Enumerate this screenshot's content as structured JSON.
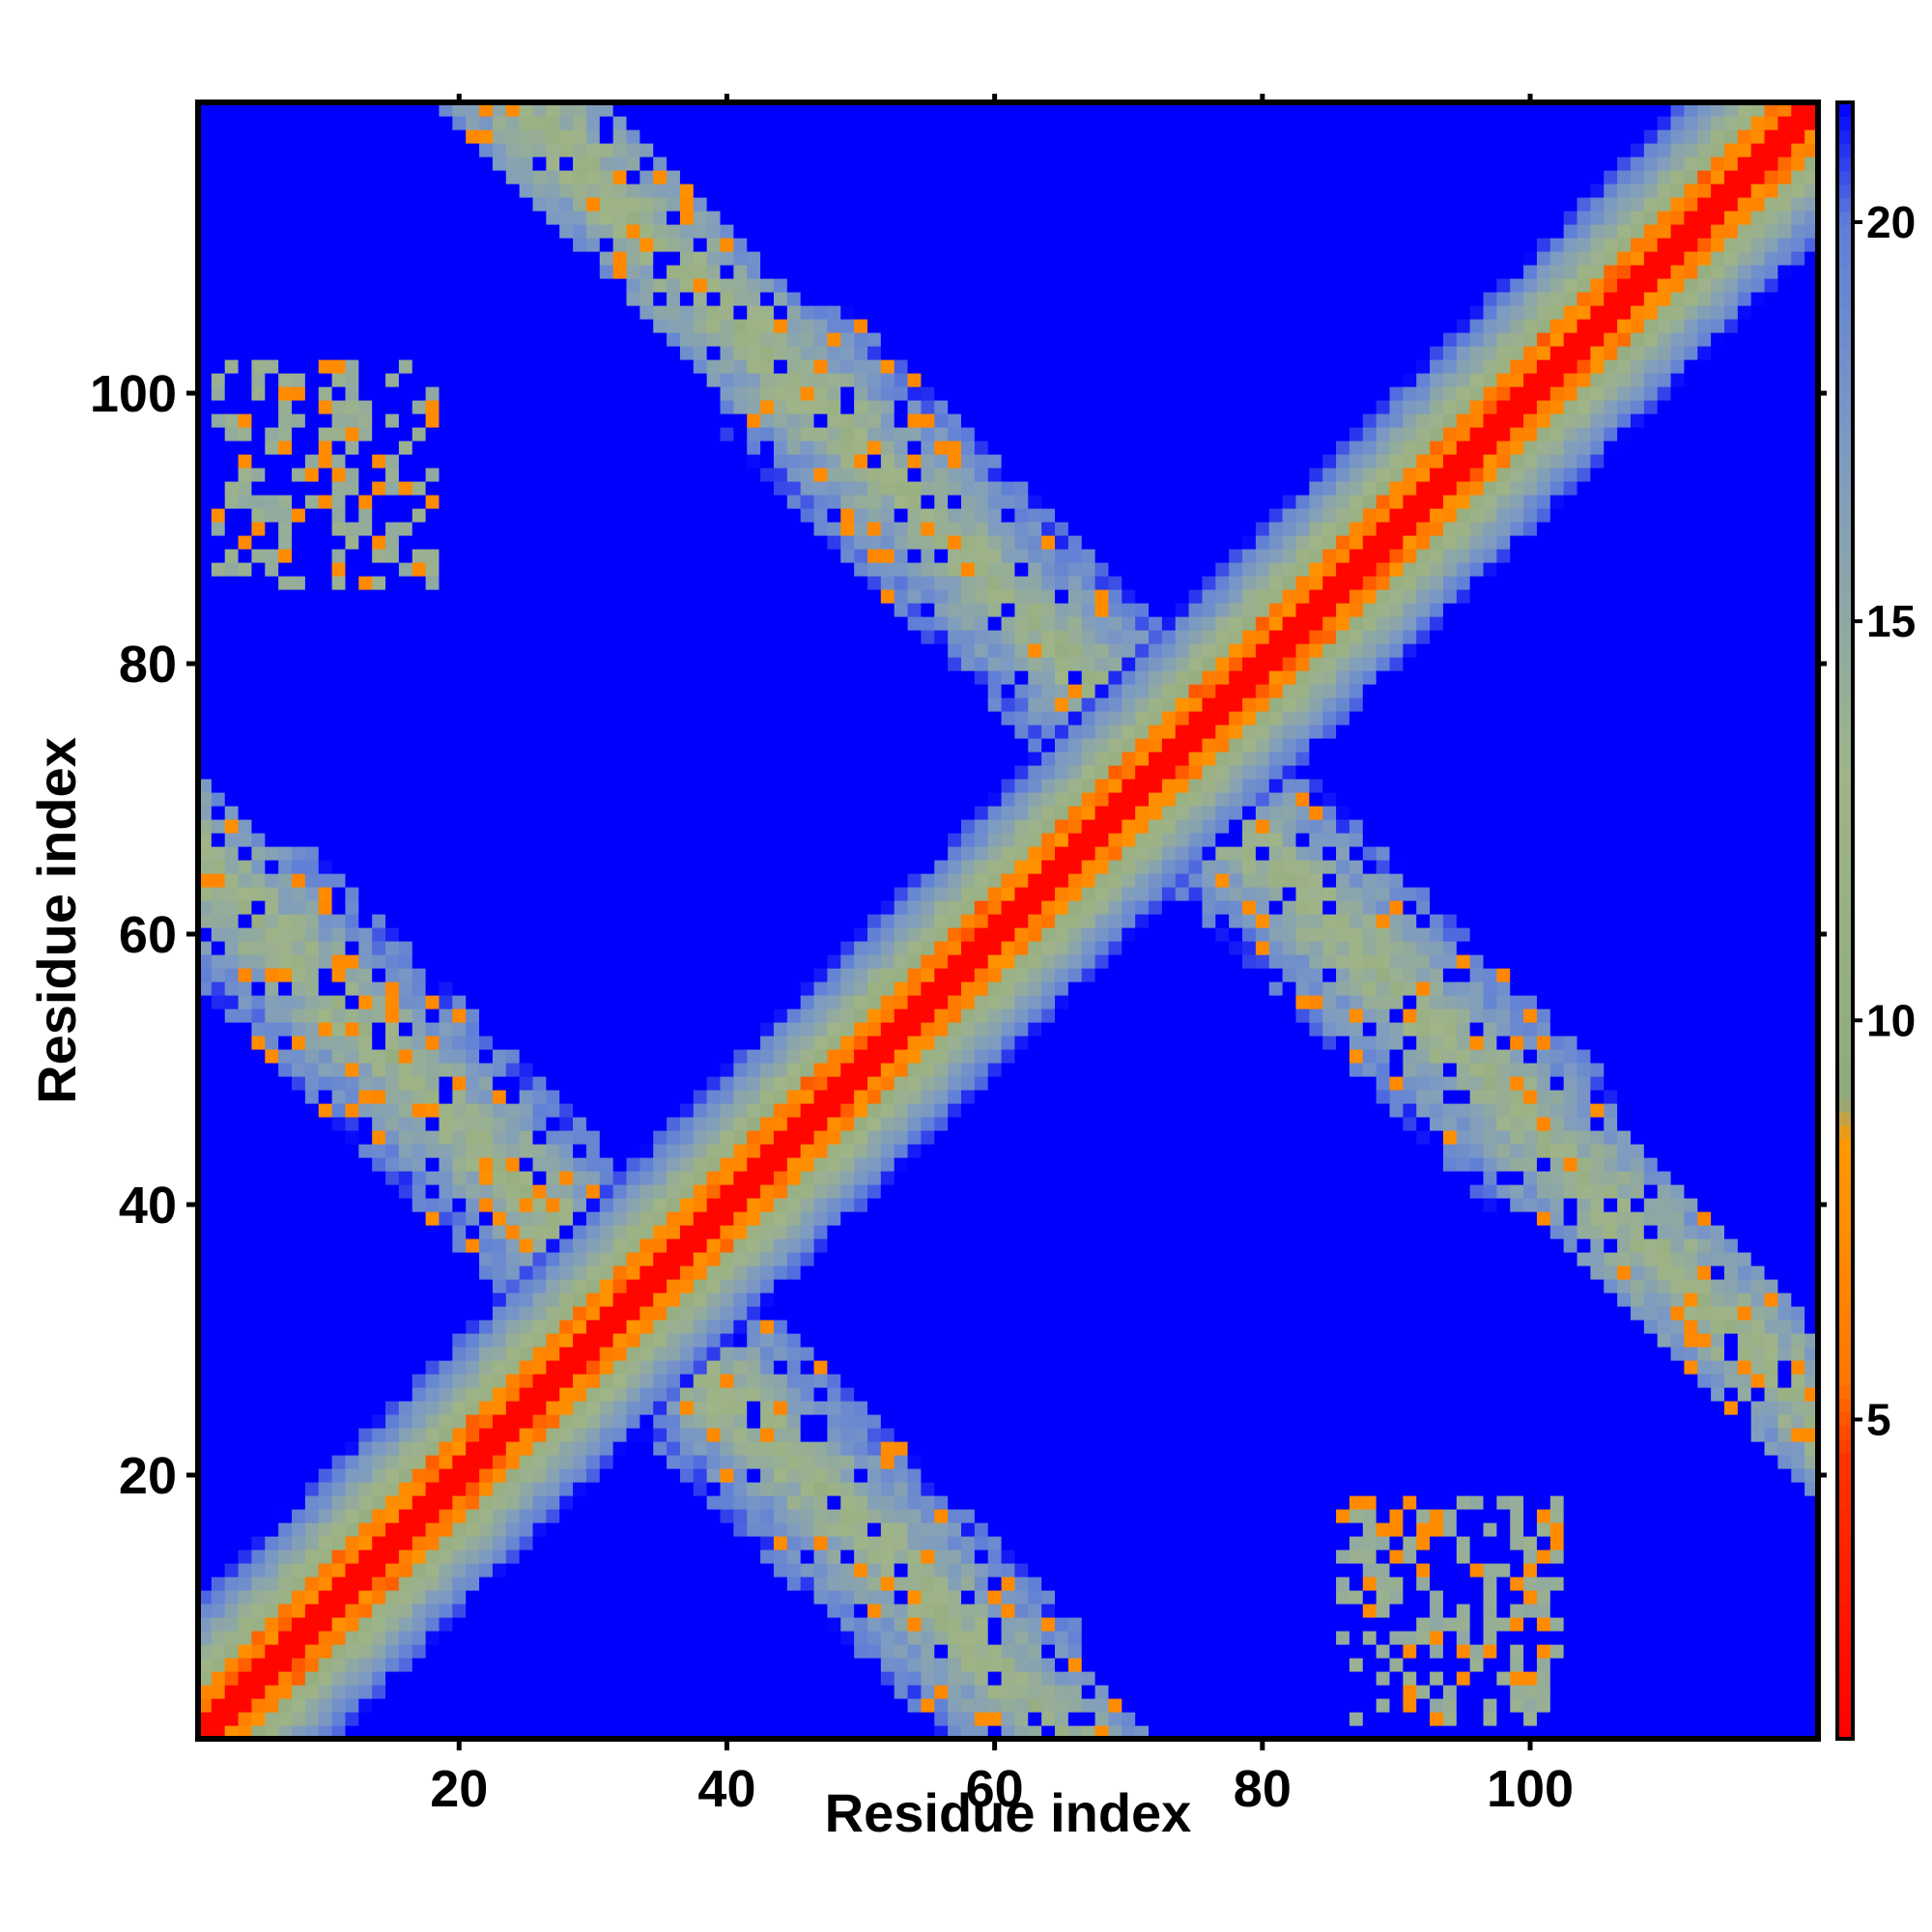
{
  "chart_data": {
    "type": "heatmap",
    "title": "",
    "xlabel": "Residue index",
    "ylabel": "Residue index",
    "n_residues": 121,
    "xlim": [
      1,
      121
    ],
    "ylim": [
      1,
      121
    ],
    "x_ticks": [
      20,
      40,
      60,
      80,
      100
    ],
    "x_tick_labels": [
      "20",
      "40",
      "60",
      "80",
      "100"
    ],
    "y_ticks": [
      20,
      40,
      60,
      80,
      100
    ],
    "y_tick_labels": [
      "20",
      "40",
      "60",
      "80",
      "100"
    ],
    "colorbar": {
      "range": [
        1,
        21.5
      ],
      "ticks": [
        5,
        10,
        15,
        20
      ],
      "tick_labels": [
        "5",
        "10",
        "15",
        "20"
      ],
      "stops": [
        {
          "value": 1,
          "color": "#ff0000"
        },
        {
          "value": 4.5,
          "color": "#ff3300"
        },
        {
          "value": 5.5,
          "color": "#ff7700"
        },
        {
          "value": 8.5,
          "color": "#ff9900"
        },
        {
          "value": 9,
          "color": "#8faa7e"
        },
        {
          "value": 13,
          "color": "#9fb487"
        },
        {
          "value": 17,
          "color": "#7f9cc0"
        },
        {
          "value": 20,
          "color": "#5f7fd8"
        },
        {
          "value": 21.5,
          "color": "#0000ff"
        }
      ]
    },
    "background_value": 21.5,
    "structure": {
      "diagonal_band_halfwidth": 10,
      "antiparallel_strands": [
        {
          "residues_a": [
            1,
            35
          ],
          "residues_b": [
            30,
            66
          ],
          "antidiagonal_sum": 66
        },
        {
          "residues_a": [
            40,
            78
          ],
          "residues_b": [
            68,
            106
          ],
          "antidiagonal_sum": 146
        }
      ],
      "long_range_patches": [
        {
          "residues_a": [
            2,
            18
          ],
          "residues_b": [
            86,
            102
          ]
        },
        {
          "residues_a": [
            86,
            102
          ],
          "residues_b": [
            2,
            18
          ]
        }
      ]
    }
  }
}
